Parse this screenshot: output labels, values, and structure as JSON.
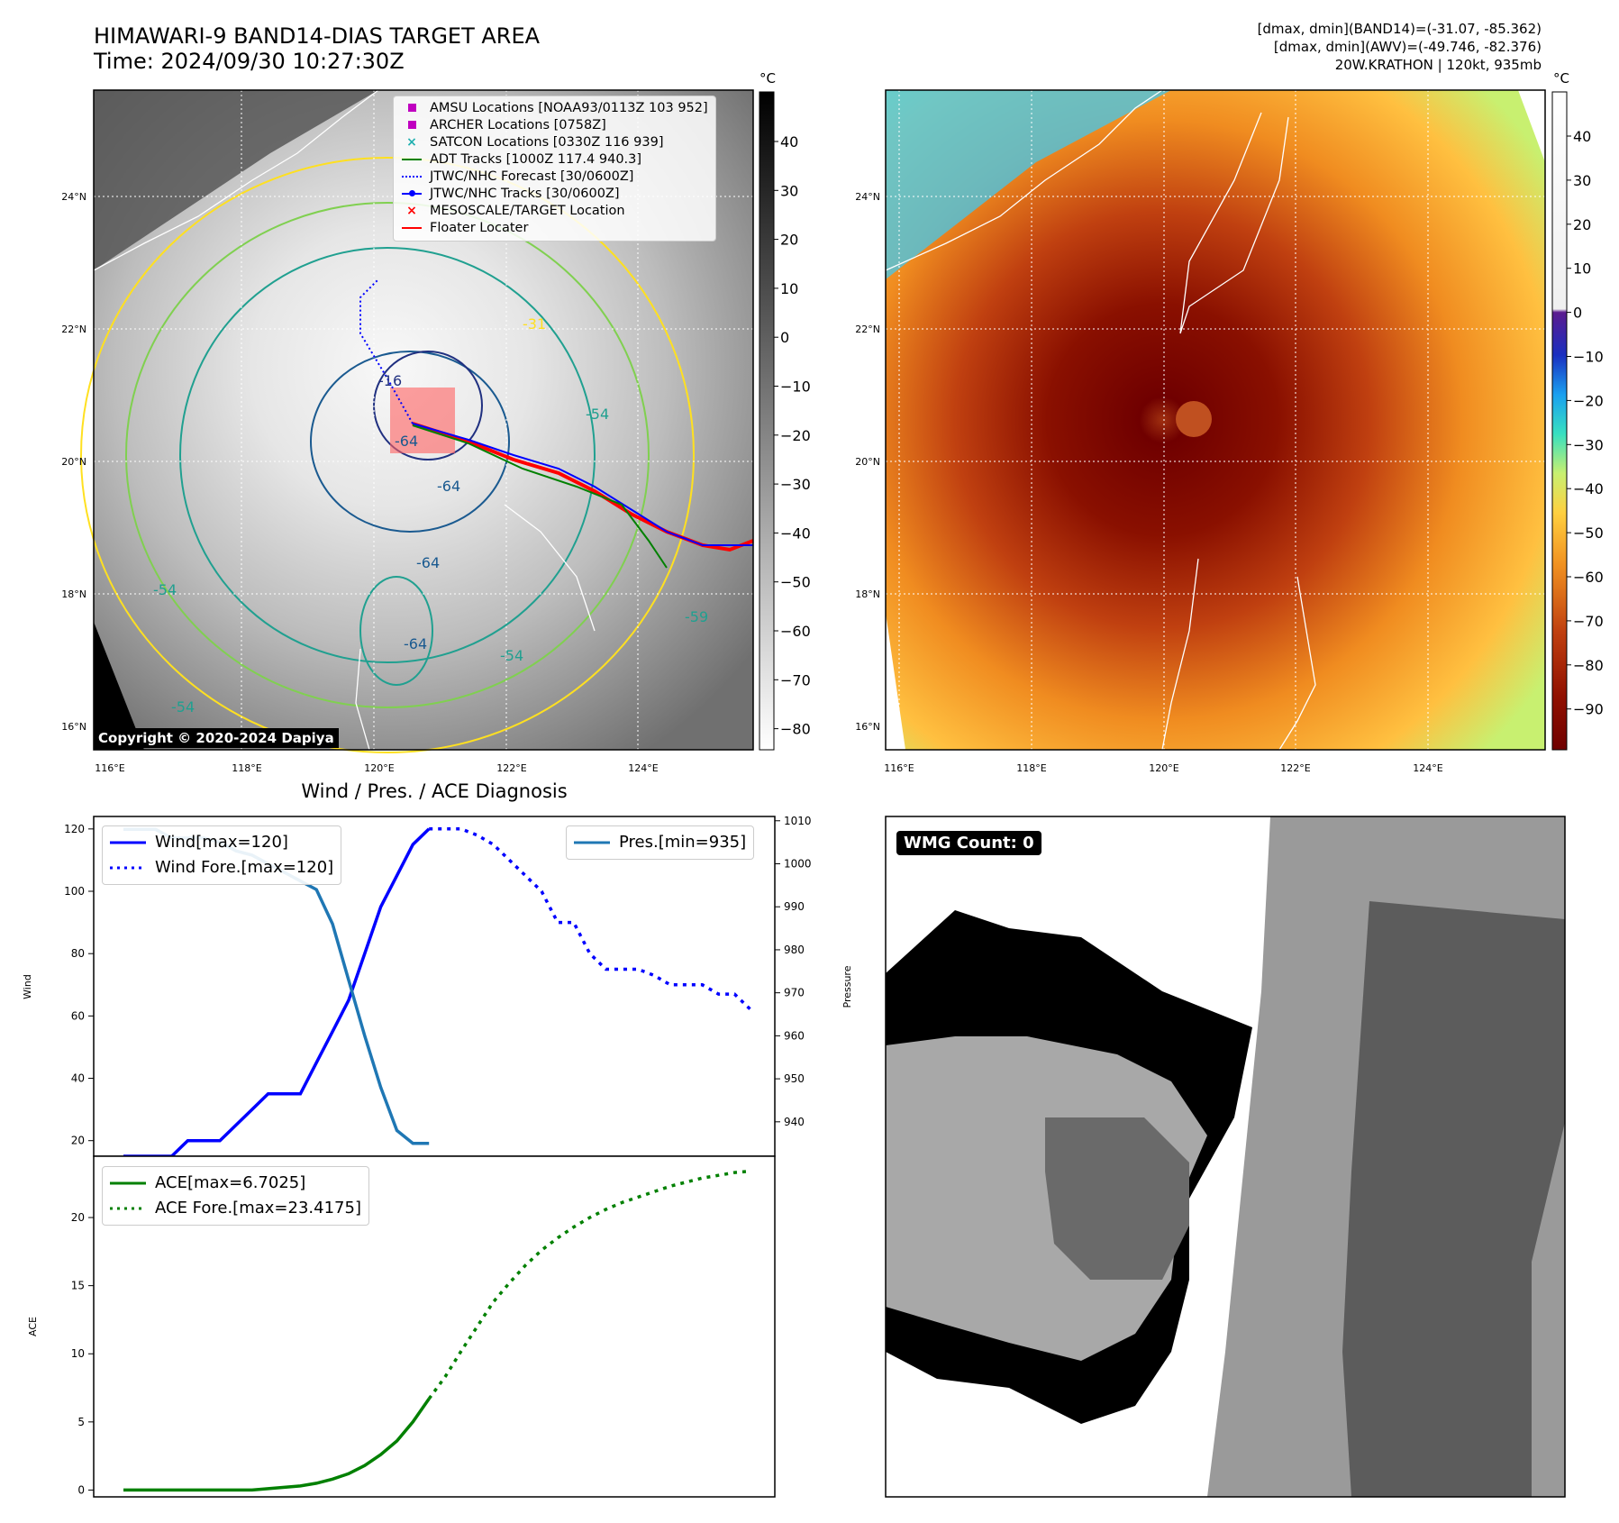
{
  "header": {
    "title_line1": "HIMAWARI-9 BAND14-DIAS TARGET AREA",
    "title_line2": "Time: 2024/09/30 10:27:30Z",
    "stats_line1": "[dmax, dmin](BAND14)=(-31.07, -85.362)",
    "stats_line2": "[dmax, dmin](AWV)=(-49.746, -82.376)",
    "stats_line3": "20W.KRATHON | 120kt, 935mb"
  },
  "maps": {
    "lon_ticks": [
      "116°E",
      "118°E",
      "120°E",
      "122°E",
      "124°E"
    ],
    "lat_ticks": [
      "24°N",
      "22°N",
      "20°N",
      "18°N",
      "16°N"
    ],
    "colorbar_unit": "°C",
    "gray_cbar_ticks": [
      "40",
      "30",
      "20",
      "10",
      "0",
      "−10",
      "−20",
      "−30",
      "−40",
      "−50",
      "−60",
      "−70",
      "−80"
    ],
    "color_cbar_ticks": [
      "40",
      "30",
      "20",
      "10",
      "0",
      "−10",
      "−20",
      "−30",
      "−40",
      "−50",
      "−60",
      "−70",
      "−80",
      "−90"
    ],
    "copyright": "Copyright © 2020-2024 Dapiya",
    "contour_labels": [
      "-64",
      "-64",
      "-64",
      "-64",
      "-54",
      "-54",
      "-54",
      "-54",
      "-31",
      "-16",
      "-59"
    ],
    "legend": [
      {
        "label": "AMSU Locations [NOAA93/0113Z 103 952]",
        "color": "#c000c0",
        "symbol": "square"
      },
      {
        "label": "ARCHER Locations [0758Z]",
        "color": "#c000c0",
        "symbol": "square"
      },
      {
        "label": "SATCON Locations [0330Z 116 939]",
        "color": "#20b0b0",
        "symbol": "x"
      },
      {
        "label": "ADT Tracks [1000Z 117.4 940.3]",
        "color": "#008000",
        "symbol": "line"
      },
      {
        "label": "JTWC/NHC Forecast [30/0600Z]",
        "color": "#0000ff",
        "symbol": "dotted"
      },
      {
        "label": "JTWC/NHC Tracks [30/0600Z]",
        "color": "#0000ff",
        "symbol": "line-dot"
      },
      {
        "label": "MESOSCALE/TARGET Location",
        "color": "#ff0000",
        "symbol": "x"
      },
      {
        "label": "Floater Locater",
        "color": "#ff0000",
        "symbol": "line"
      }
    ]
  },
  "diagnosis": {
    "title": "Wind / Pres. / ACE Diagnosis",
    "wind_ylabel": "Wind",
    "pres_ylabel": "Pressure",
    "ace_ylabel": "ACE",
    "legend_wind": "Wind[max=120]",
    "legend_wind_fore": "Wind Fore.[max=120]",
    "legend_pres": "Pres.[min=935]",
    "legend_ace": "ACE[max=6.7025]",
    "legend_ace_fore": "ACE Fore.[max=23.4175]",
    "wind_ticks": [
      "120",
      "100",
      "80",
      "60",
      "40",
      "20"
    ],
    "pres_ticks": [
      "1010",
      "1000",
      "990",
      "980",
      "970",
      "960",
      "950",
      "940"
    ],
    "ace_ticks": [
      "20",
      "15",
      "10",
      "5",
      "0"
    ]
  },
  "wmg": {
    "label": "WMG Count: 0"
  },
  "chart_data": [
    {
      "type": "line",
      "title": "Wind / Pres. / ACE Diagnosis",
      "ylabel": "Wind",
      "ylim": [
        15,
        124
      ],
      "series": [
        {
          "name": "Wind[max=120]",
          "style": "solid",
          "color": "#0000ff",
          "x": [
            0,
            1,
            2,
            3,
            4,
            5,
            6,
            7,
            8,
            9,
            10,
            11,
            12,
            13,
            14,
            15,
            16,
            17,
            18,
            19,
            20,
            21
          ],
          "values": [
            15,
            15,
            15,
            15,
            20,
            20,
            20,
            25,
            30,
            35,
            35,
            35,
            45,
            55,
            65,
            80,
            95,
            105,
            115,
            120,
            null,
            null
          ]
        },
        {
          "name": "Wind Fore.[max=120]",
          "style": "dotted",
          "color": "#0000ff",
          "x": [
            19,
            20,
            21,
            22,
            23,
            24,
            25,
            26,
            27,
            28,
            29,
            30,
            31,
            32,
            33,
            34,
            35,
            36,
            37,
            38,
            39
          ],
          "values": [
            120,
            120,
            120,
            118,
            115,
            110,
            105,
            100,
            90,
            90,
            80,
            75,
            75,
            75,
            73,
            70,
            70,
            70,
            67,
            67,
            62
          ]
        },
        {
          "name": "Pres.[min=935]",
          "style": "solid",
          "color": "#1f77b4",
          "axis": "right",
          "x": [
            0,
            1,
            2,
            3,
            4,
            5,
            6,
            7,
            8,
            9,
            10,
            11,
            12,
            13,
            14,
            15,
            16,
            17,
            18,
            19
          ],
          "values": [
            1008,
            1008,
            1008,
            1006,
            1006,
            1006,
            1005,
            1003,
            1002,
            1000,
            998,
            996,
            994,
            986,
            973,
            960,
            948,
            938,
            935,
            935
          ]
        }
      ],
      "y2label": "Pressure",
      "y2lim": [
        932,
        1011
      ]
    },
    {
      "type": "line",
      "ylabel": "ACE",
      "ylim": [
        -0.5,
        24.5
      ],
      "series": [
        {
          "name": "ACE[max=6.7025]",
          "style": "solid",
          "color": "#008000",
          "x": [
            0,
            1,
            2,
            3,
            4,
            5,
            6,
            7,
            8,
            9,
            10,
            11,
            12,
            13,
            14,
            15,
            16,
            17,
            18,
            19
          ],
          "values": [
            0,
            0,
            0,
            0,
            0,
            0,
            0,
            0,
            0,
            0.1,
            0.2,
            0.3,
            0.5,
            0.8,
            1.2,
            1.8,
            2.6,
            3.6,
            5.0,
            6.7
          ]
        },
        {
          "name": "ACE Fore.[max=23.4175]",
          "style": "dotted",
          "color": "#008000",
          "x": [
            19,
            20,
            21,
            22,
            23,
            24,
            25,
            26,
            27,
            28,
            29,
            30,
            31,
            32,
            33,
            34,
            35,
            36,
            37,
            38,
            39
          ],
          "values": [
            6.7,
            8.3,
            10.2,
            12.0,
            13.8,
            15.2,
            16.5,
            17.6,
            18.5,
            19.3,
            20.0,
            20.6,
            21.1,
            21.5,
            21.9,
            22.3,
            22.6,
            22.9,
            23.1,
            23.3,
            23.4
          ]
        }
      ]
    }
  ]
}
